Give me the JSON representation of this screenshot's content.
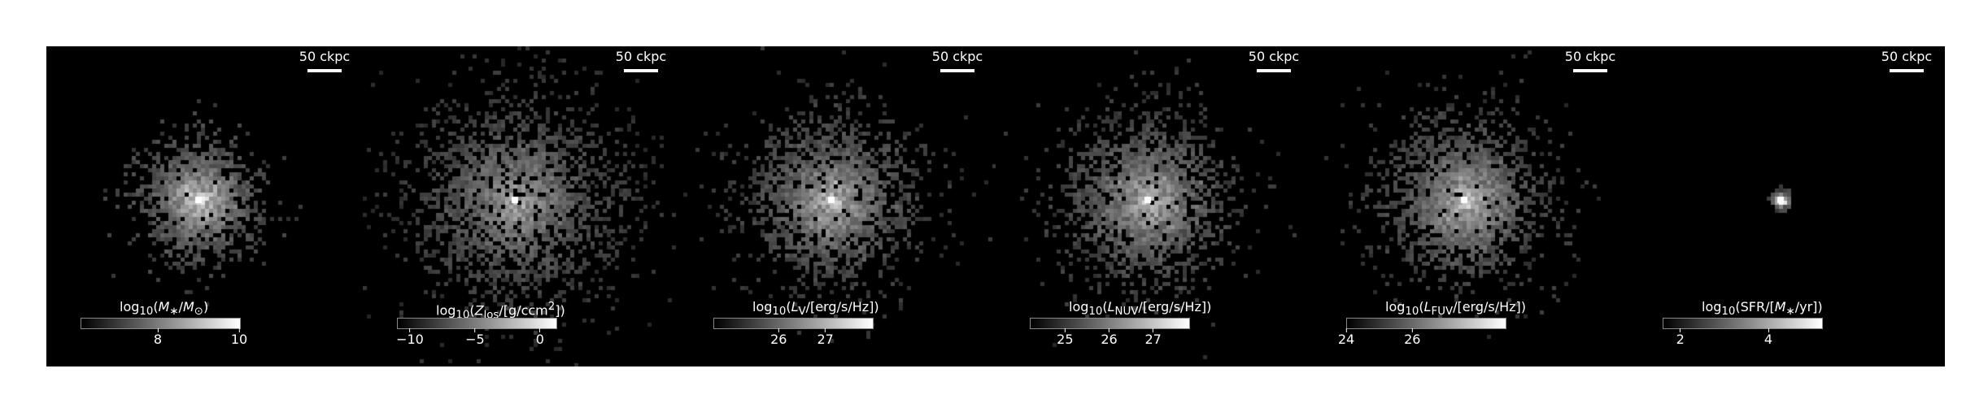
{
  "panels": [
    {
      "scale_label": "50 ckpc",
      "colorbar": {
        "title_html": "log<sub>10</sub>(<i>M</i><sub>∗</sub>/<i>M</i><sub>⊙</sub>)",
        "vmin": 6.1,
        "vmax": 10,
        "ticks": [
          {
            "value": 8,
            "label": "8"
          },
          {
            "value": 10,
            "label": "10"
          }
        ]
      },
      "map": {
        "center": [
          0.48,
          0.48
        ],
        "spread": 0.09,
        "density": 0.55,
        "seed": 11,
        "brightness": 1.0
      }
    },
    {
      "scale_label": "50 ckpc",
      "colorbar": {
        "title_html": "log<sub>10</sub>(<i>Z</i><sub>los</sub>/[g/ccm<sup>2</sup>])",
        "vmin": -11,
        "vmax": 1.2,
        "ticks": [
          {
            "value": -10,
            "label": "−10"
          },
          {
            "value": -5,
            "label": "−5"
          },
          {
            "value": 0,
            "label": "0"
          }
        ]
      },
      "map": {
        "center": [
          0.48,
          0.48
        ],
        "spread": 0.17,
        "density": 0.9,
        "seed": 23,
        "brightness": 0.75
      }
    },
    {
      "scale_label": "50 ckpc",
      "colorbar": {
        "title_html": "log<sub>10</sub>(<i>L</i><sub>V</sub>/[erg/s/Hz])",
        "vmin": 24.6,
        "vmax": 28.0,
        "ticks": [
          {
            "value": 26,
            "label": "26"
          },
          {
            "value": 27,
            "label": "27"
          }
        ]
      },
      "map": {
        "center": [
          0.48,
          0.48
        ],
        "spread": 0.13,
        "density": 0.8,
        "seed": 37,
        "brightness": 0.85
      }
    },
    {
      "scale_label": "50 ckpc",
      "colorbar": {
        "title_html": "log<sub>10</sub>(<i>L</i><sub>NUV</sub>/[erg/s/Hz])",
        "vmin": 24.2,
        "vmax": 27.8,
        "ticks": [
          {
            "value": 25,
            "label": "25"
          },
          {
            "value": 26,
            "label": "26"
          },
          {
            "value": 27,
            "label": "27"
          }
        ]
      },
      "map": {
        "center": [
          0.48,
          0.48
        ],
        "spread": 0.13,
        "density": 0.8,
        "seed": 41,
        "brightness": 0.85
      }
    },
    {
      "scale_label": "50 ckpc",
      "colorbar": {
        "title_html": "log<sub>10</sub>(<i>L</i><sub>FUV</sub>/[erg/s/Hz])",
        "vmin": 24,
        "vmax": 28.8,
        "ticks": [
          {
            "value": 24,
            "label": "24"
          },
          {
            "value": 26,
            "label": "26"
          }
        ]
      },
      "map": {
        "center": [
          0.48,
          0.48
        ],
        "spread": 0.13,
        "density": 0.8,
        "seed": 53,
        "brightness": 0.85
      }
    },
    {
      "scale_label": "50 ckpc",
      "colorbar": {
        "title_html": "log<sub>10</sub>(SFR/[<i>M</i><sub>∗</sub>/yr])",
        "vmin": 1.6,
        "vmax": 5.2,
        "ticks": [
          {
            "value": 2,
            "label": "2"
          },
          {
            "value": 4,
            "label": "4"
          }
        ]
      },
      "map": {
        "center": [
          0.48,
          0.48
        ],
        "spread": 0.012,
        "density": 0.12,
        "seed": 67,
        "brightness": 1.0
      }
    }
  ]
}
